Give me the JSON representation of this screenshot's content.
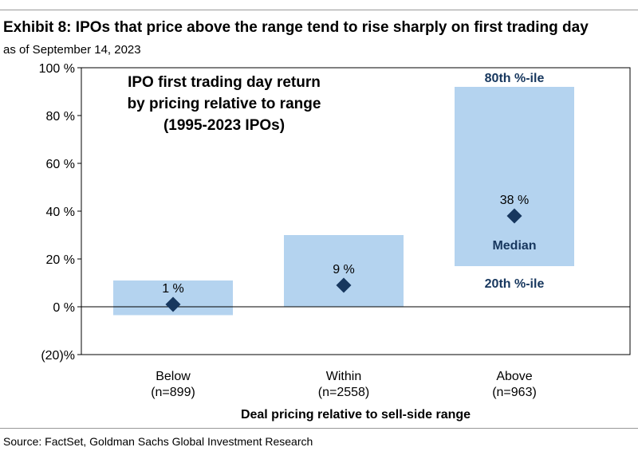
{
  "header": {
    "title": "Exhibit 8: IPOs that price above the range tend to rise sharply on first trading day",
    "subtitle": "as of September 14, 2023"
  },
  "footer": {
    "source": "Source: FactSet, Goldman Sachs Global Investment Research"
  },
  "chart_data": {
    "type": "bar",
    "title_lines": [
      "IPO first trading day return",
      "by pricing relative to range",
      "(1995-2023 IPOs)"
    ],
    "xlabel": "Deal pricing relative to sell-side range",
    "ylabel": "",
    "ylim": [
      -20,
      100
    ],
    "yticks": [
      -20,
      0,
      20,
      40,
      60,
      80,
      100
    ],
    "ytick_labels": [
      "(20)%",
      "0 %",
      "20 %",
      "40 %",
      "60 %",
      "80 %",
      "100 %"
    ],
    "categories": [
      {
        "name": "Below",
        "count": "(n=899)"
      },
      {
        "name": "Within",
        "count": "(n=2558)"
      },
      {
        "name": "Above",
        "count": "(n=963)"
      }
    ],
    "series": [
      {
        "name": "20th %-ile",
        "values": [
          -3.5,
          0,
          17
        ]
      },
      {
        "name": "80th %-ile",
        "values": [
          11,
          30,
          92
        ]
      },
      {
        "name": "Median",
        "values": [
          1,
          9,
          38
        ]
      }
    ],
    "median_labels": [
      "1 %",
      "9 %",
      "38 %"
    ],
    "annotations": {
      "p80": "80th %-ile",
      "median": "Median",
      "p20": "20th %-ile"
    },
    "colors": {
      "range_bar": "#b4d3ef",
      "marker": "#17375e",
      "annotation_text": "#17375e",
      "axis": "#000000"
    },
    "grid": false,
    "legend": "none"
  }
}
